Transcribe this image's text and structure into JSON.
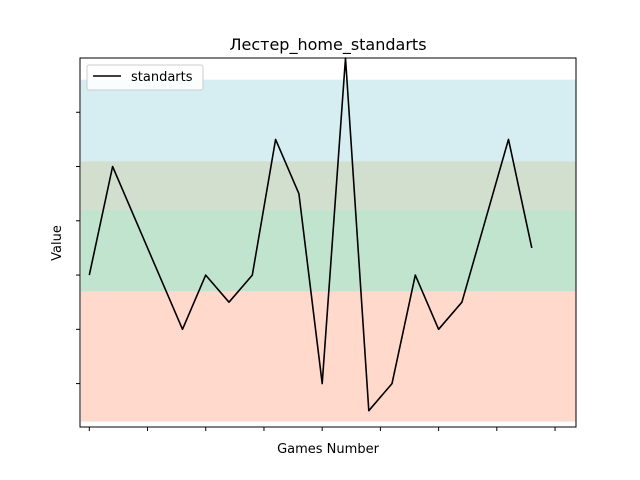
{
  "chart_data": {
    "type": "line",
    "title": "Лестер_home_standarts",
    "xlabel": "Games Number",
    "ylabel": "Value",
    "x": [
      0,
      1,
      2,
      3,
      4,
      5,
      6,
      7,
      8,
      9,
      10,
      11,
      12,
      13,
      14,
      15,
      16,
      17,
      18,
      19
    ],
    "series": [
      {
        "name": "standarts",
        "color": "#000000",
        "values": [
          4.5,
          6.5,
          5.5,
          4.5,
          3.5,
          4.5,
          4.0,
          4.5,
          7.0,
          6.0,
          2.5,
          8.5,
          2.0,
          2.5,
          4.5,
          3.5,
          4.0,
          5.5,
          7.0,
          5.0
        ]
      }
    ],
    "bands": [
      {
        "from": 1.8,
        "to": 4.2,
        "color": "#FFD9CC"
      },
      {
        "from": 4.2,
        "to": 5.7,
        "color": "#C0E4CD"
      },
      {
        "from": 5.7,
        "to": 6.6,
        "color": "#D2DFCF"
      },
      {
        "from": 6.6,
        "to": 8.1,
        "color": "#D6EEF2"
      }
    ],
    "ylim": [
      1.7,
      8.5
    ],
    "xlim": [
      -0.4,
      20.9
    ],
    "ytick_values": [
      2.5,
      3.5,
      4.5,
      5.5,
      6.5,
      7.5
    ],
    "xtick_values": [
      0,
      2.5,
      5,
      7.5,
      10,
      12.5,
      15,
      17.5,
      20
    ],
    "tick_labels_shown": false,
    "grid": false,
    "legend_position": "top-left"
  }
}
